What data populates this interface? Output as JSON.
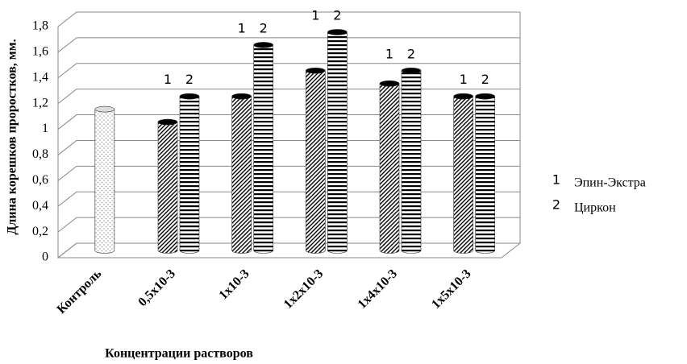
{
  "chart_data": {
    "type": "bar3d",
    "y_label": "Длина корешков проростков, мм.",
    "x_label": "Концентрации растворов",
    "categories": [
      "Контроль",
      "0,5х10-3",
      "1х10-3",
      "1х2х10-3",
      "1х4х10-3",
      "1х5х10-3"
    ],
    "series": [
      {
        "color": "#9a9a9a",
        "pattern": "dots",
        "values": [
          1.1,
          null,
          null,
          null,
          null,
          null
        ]
      },
      {
        "name": "Эпин-Экстра",
        "marker": "1",
        "color": "#000000",
        "pattern": "diagonal",
        "values": [
          null,
          1.0,
          1.2,
          1.4,
          1.3,
          1.2
        ]
      },
      {
        "name": "Циркон",
        "marker": "2",
        "color": "#000000",
        "pattern": "horizontal",
        "values": [
          null,
          1.2,
          1.6,
          1.7,
          1.4,
          1.2
        ]
      }
    ],
    "ylim": [
      0,
      1.8
    ],
    "yticks": [
      0,
      {
        "value": 0.2,
        "label": "0,2"
      },
      {
        "value": 0.4,
        "label": "0,4"
      },
      {
        "value": 0.6,
        "label": "0,6"
      },
      {
        "value": 0.8,
        "label": "0,8"
      },
      1,
      {
        "value": 1.2,
        "label": "1,2"
      },
      {
        "value": 1.4,
        "label": "1,4"
      },
      {
        "value": 1.6,
        "label": "1,6"
      },
      {
        "value": 1.8,
        "label": "1,8"
      }
    ],
    "grid": true
  }
}
